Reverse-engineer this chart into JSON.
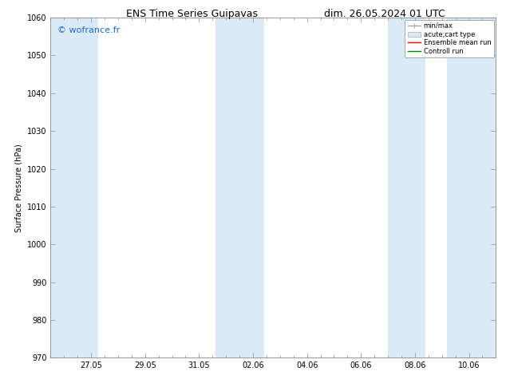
{
  "title": "ENS Time Series Guipavas",
  "title2": "dim. 26.05.2024 01 UTC",
  "ylabel": "Surface Pressure (hPa)",
  "ylim": [
    970,
    1060
  ],
  "yticks": [
    970,
    980,
    990,
    1000,
    1010,
    1020,
    1030,
    1040,
    1050,
    1060
  ],
  "xtick_labels": [
    "27.05",
    "29.05",
    "31.05",
    "02.06",
    "04.06",
    "06.06",
    "08.06",
    "10.06"
  ],
  "xtick_positions": [
    1,
    3,
    5,
    7,
    9,
    11,
    13,
    15
  ],
  "xlim": [
    -0.5,
    16.0
  ],
  "watermark": "© wofrance.fr",
  "watermark_color": "#1a6cc7",
  "bg_color": "#ffffff",
  "plot_bg_color": "#ffffff",
  "band_color": "#daeaf7",
  "shaded_bands": [
    {
      "x_start": -0.5,
      "x_end": 1.25
    },
    {
      "x_start": 5.6,
      "x_end": 7.4
    },
    {
      "x_start": 12.0,
      "x_end": 13.4
    },
    {
      "x_start": 14.2,
      "x_end": 16.0
    }
  ],
  "title_fontsize": 9,
  "label_fontsize": 7,
  "tick_fontsize": 7,
  "watermark_fontsize": 8,
  "legend_fontsize": 6
}
